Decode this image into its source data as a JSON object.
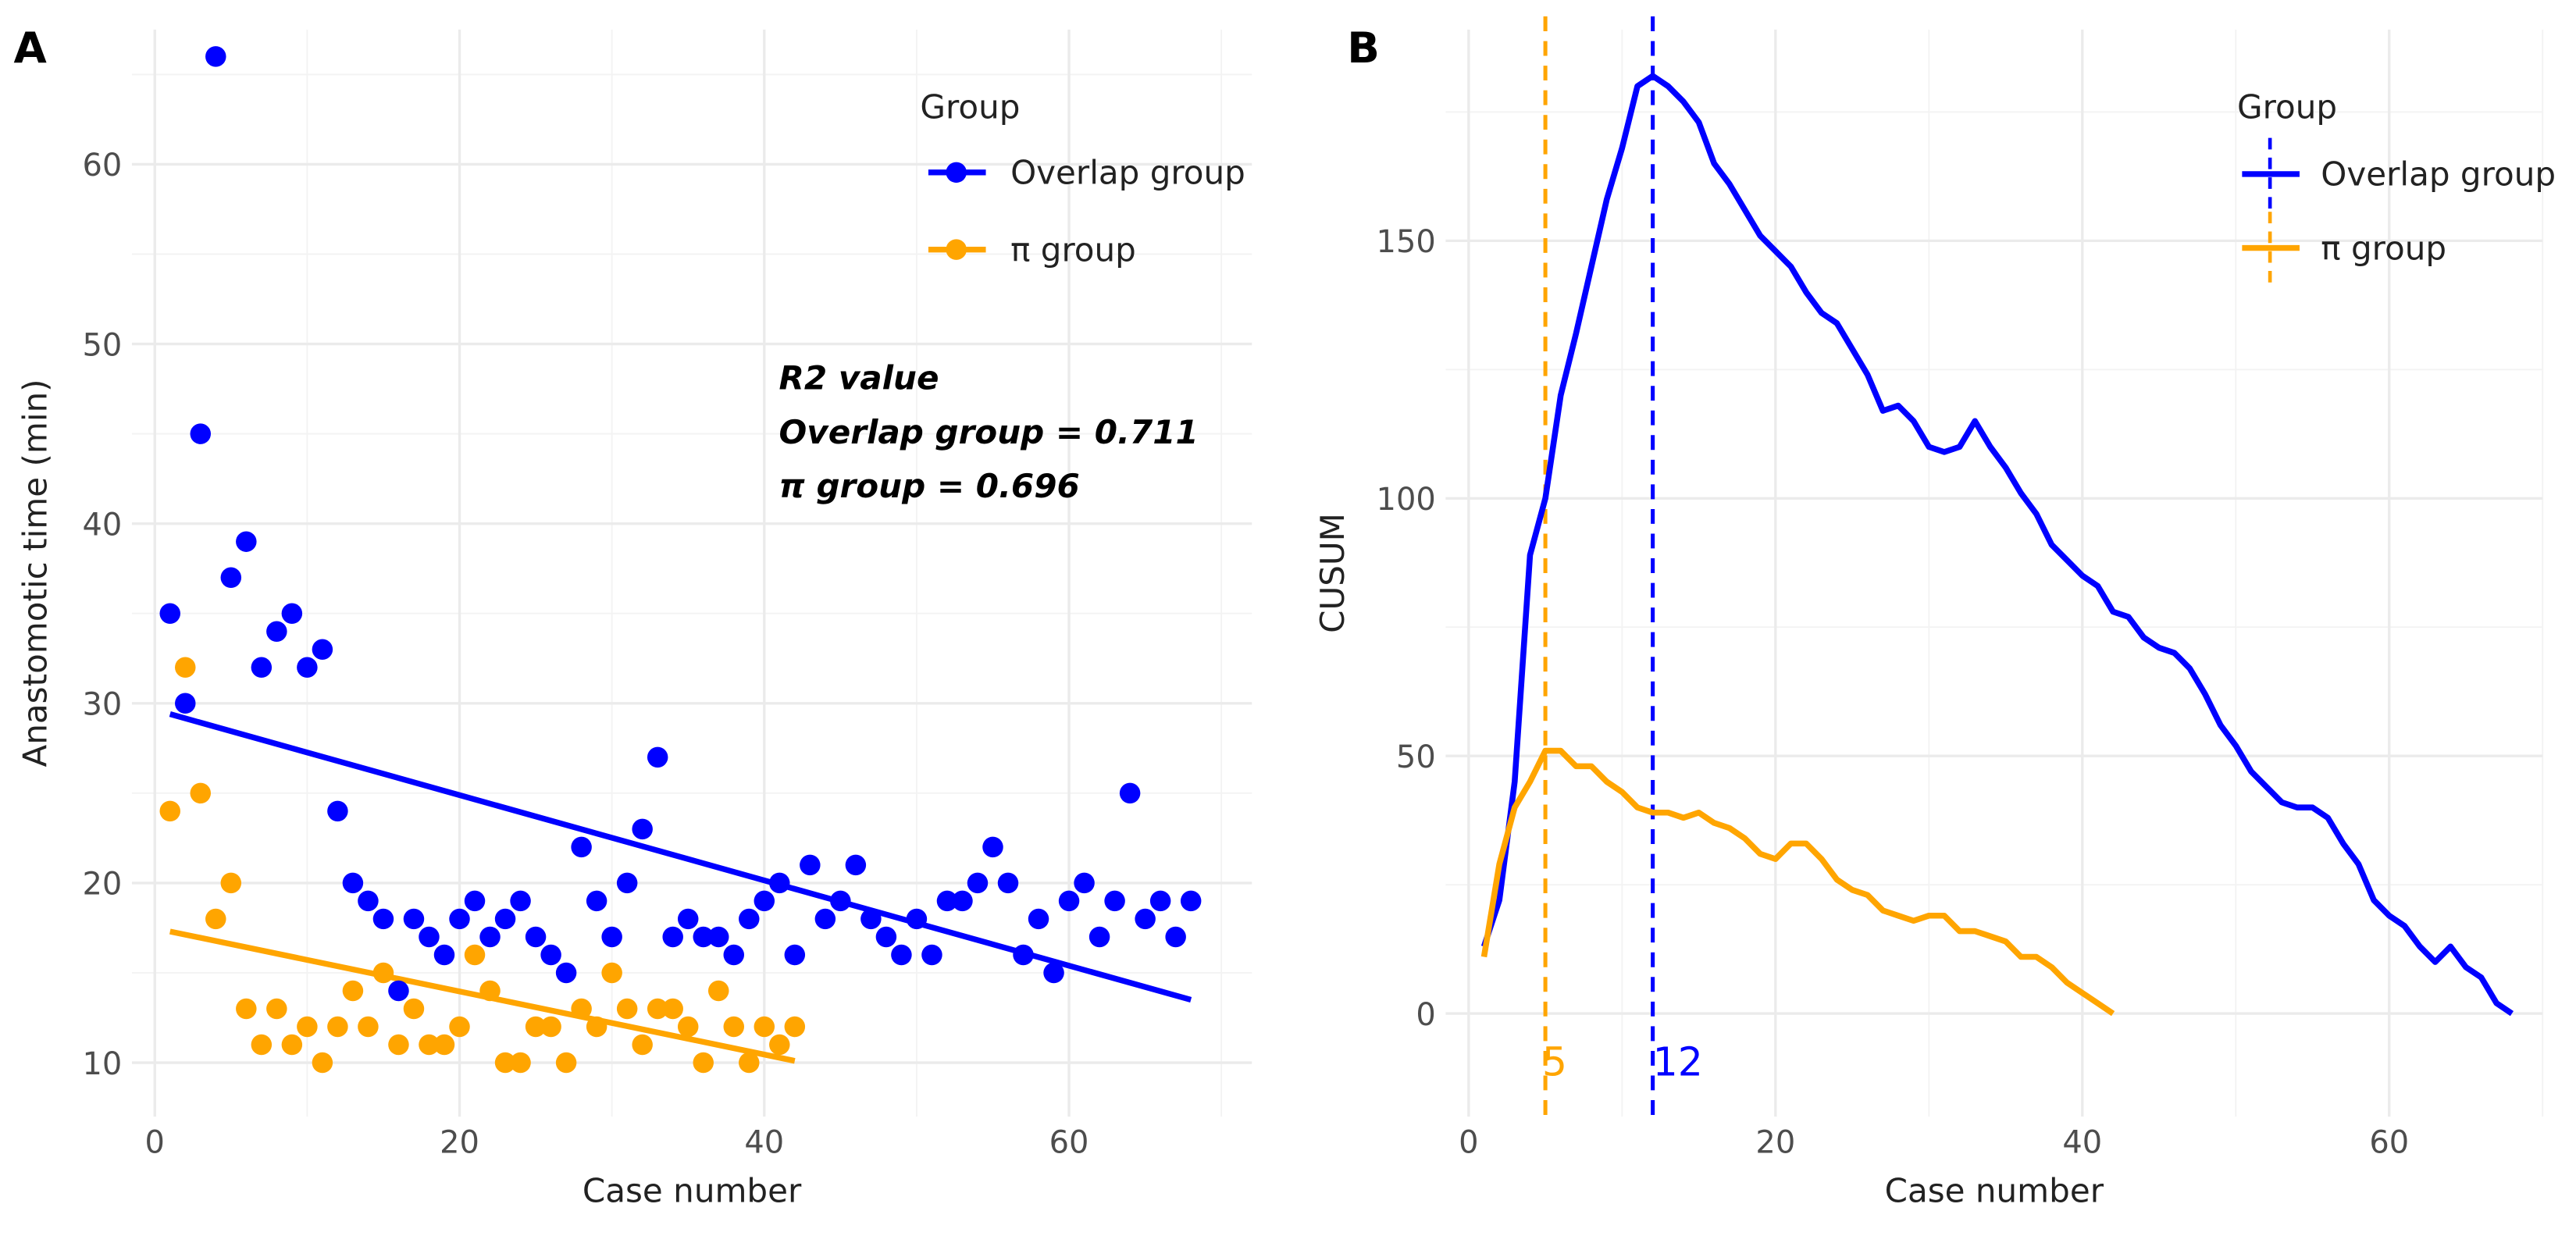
{
  "panels": {
    "a": "A",
    "b": "B"
  },
  "colors": {
    "overlap": "#0000ff",
    "pi": "#ffa500"
  },
  "chart_data": [
    {
      "type": "scatter",
      "panel": "A",
      "xlabel": "Case number",
      "ylabel": "Anastomotic time (min)",
      "xlim": [
        -1.5,
        72
      ],
      "ylim": [
        7,
        67.5
      ],
      "xticks": [
        0,
        20,
        40,
        60
      ],
      "yticks": [
        10,
        20,
        30,
        40,
        50,
        60
      ],
      "legend": {
        "title": "Group",
        "position": "top-right",
        "entries": [
          "Overlap group",
          "π group"
        ]
      },
      "annotation": [
        "R2 value",
        "Overlap group = 0.711",
        "π group = 0.696"
      ],
      "series": [
        {
          "name": "Overlap group",
          "color": "#0000ff",
          "x": [
            1,
            2,
            3,
            4,
            5,
            6,
            7,
            8,
            9,
            10,
            11,
            12,
            13,
            14,
            15,
            16,
            17,
            18,
            19,
            20,
            21,
            22,
            23,
            24,
            25,
            26,
            27,
            28,
            29,
            30,
            31,
            32,
            33,
            34,
            35,
            36,
            37,
            38,
            39,
            40,
            41,
            42,
            43,
            44,
            45,
            46,
            47,
            48,
            49,
            50,
            51,
            52,
            53,
            54,
            55,
            56,
            57,
            58,
            59,
            60,
            61,
            62,
            63,
            64,
            65,
            66,
            67,
            68
          ],
          "y": [
            35,
            30,
            45,
            66,
            37,
            39,
            32,
            34,
            35,
            32,
            33,
            24,
            20,
            19,
            18,
            14,
            18,
            17,
            16,
            18,
            19,
            17,
            18,
            19,
            17,
            16,
            15,
            22,
            19,
            17,
            20,
            23,
            27,
            17,
            18,
            17,
            17,
            16,
            18,
            19,
            20,
            16,
            21,
            18,
            19,
            21,
            18,
            17,
            16,
            18,
            16,
            19,
            19,
            20,
            22,
            20,
            16,
            18,
            15,
            19,
            20,
            17,
            19,
            25,
            18,
            19,
            17,
            19
          ],
          "trend": {
            "x": [
              1,
              68
            ],
            "y": [
              29.4,
              13.5
            ]
          }
        },
        {
          "name": "π group",
          "color": "#ffa500",
          "x": [
            1,
            2,
            3,
            4,
            5,
            6,
            7,
            8,
            9,
            10,
            11,
            12,
            13,
            14,
            15,
            16,
            17,
            18,
            19,
            20,
            21,
            22,
            23,
            24,
            25,
            26,
            27,
            28,
            29,
            30,
            31,
            32,
            33,
            34,
            35,
            36,
            37,
            38,
            39,
            40,
            41,
            42
          ],
          "y": [
            24,
            32,
            25,
            18,
            20,
            13,
            11,
            13,
            11,
            12,
            10,
            12,
            14,
            12,
            15,
            11,
            13,
            11,
            11,
            12,
            16,
            14,
            10,
            10,
            12,
            12,
            10,
            13,
            12,
            15,
            13,
            11,
            13,
            13,
            12,
            10,
            14,
            12,
            10,
            12,
            11,
            12
          ],
          "trend": {
            "x": [
              1,
              42
            ],
            "y": [
              17.3,
              10.1
            ]
          }
        }
      ]
    },
    {
      "type": "line",
      "panel": "B",
      "xlabel": "Case number",
      "ylabel": "CUSUM",
      "xlim": [
        -1.5,
        70
      ],
      "ylim": [
        -20,
        191
      ],
      "xticks": [
        0,
        20,
        40,
        60
      ],
      "yticks": [
        0,
        50,
        100,
        150
      ],
      "legend": {
        "title": "Group",
        "position": "top-right",
        "entries": [
          "Overlap group",
          "π group"
        ]
      },
      "vlines": [
        {
          "x": 5,
          "label": "5",
          "color": "#ffa500"
        },
        {
          "x": 12,
          "label": "12",
          "color": "#0000ff"
        }
      ],
      "series": [
        {
          "name": "Overlap group",
          "color": "#0000ff",
          "x": [
            1,
            2,
            3,
            4,
            5,
            6,
            7,
            8,
            9,
            10,
            11,
            12,
            13,
            14,
            15,
            16,
            17,
            18,
            19,
            20,
            21,
            22,
            23,
            24,
            25,
            26,
            27,
            28,
            29,
            30,
            31,
            32,
            33,
            34,
            35,
            36,
            37,
            38,
            39,
            40,
            41,
            42,
            43,
            44,
            45,
            46,
            47,
            48,
            49,
            50,
            51,
            52,
            53,
            54,
            55,
            56,
            57,
            58,
            59,
            60,
            61,
            62,
            63,
            64,
            65,
            66,
            67,
            68
          ],
          "y": [
            13,
            22,
            45,
            89,
            100,
            120,
            132,
            145,
            158,
            168,
            180,
            182,
            180,
            177,
            173,
            165,
            161,
            156,
            151,
            148,
            145,
            140,
            136,
            134,
            129,
            124,
            117,
            118,
            115,
            110,
            109,
            110,
            115,
            110,
            106,
            101,
            97,
            91,
            88,
            85,
            83,
            78,
            77,
            73,
            71,
            70,
            67,
            62,
            56,
            52,
            47,
            44,
            41,
            40,
            40,
            38,
            33,
            29,
            22,
            19,
            17,
            13,
            10,
            13,
            9,
            7,
            2,
            0
          ]
        },
        {
          "name": "π group",
          "color": "#ffa500",
          "x": [
            1,
            2,
            3,
            4,
            5,
            6,
            7,
            8,
            9,
            10,
            11,
            12,
            13,
            14,
            15,
            16,
            17,
            18,
            19,
            20,
            21,
            22,
            23,
            24,
            25,
            26,
            27,
            28,
            29,
            30,
            31,
            32,
            33,
            34,
            35,
            36,
            37,
            38,
            39,
            40,
            41,
            42
          ],
          "y": [
            11,
            29,
            40,
            45,
            51,
            51,
            48,
            48,
            45,
            43,
            40,
            39,
            39,
            38,
            39,
            37,
            36,
            34,
            31,
            30,
            33,
            33,
            30,
            26,
            24,
            23,
            20,
            19,
            18,
            19,
            19,
            16,
            16,
            15,
            14,
            11,
            11,
            9,
            6,
            4,
            2,
            0
          ]
        }
      ]
    }
  ]
}
